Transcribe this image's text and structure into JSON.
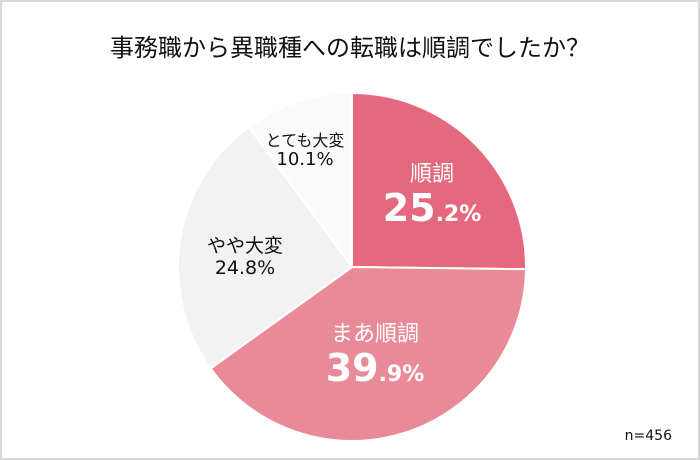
{
  "title": "事務職から異職種への転職は順調でしたか？",
  "sample_size": "n=456",
  "colors": {
    "junchou": "#e4697e",
    "maa_junchou": "#e98a98",
    "yaya_taihen": "#f2f2f2",
    "totemo_taihen": "#fafafa",
    "border": "#d9d9d9",
    "separator": "#ffffff"
  },
  "slices": [
    {
      "label": "順調",
      "int": "25",
      "dec": ".2%",
      "value": 25.2,
      "color": "#e4697e"
    },
    {
      "label": "まあ順調",
      "int": "39",
      "dec": ".9%",
      "value": 39.9,
      "color": "#e98a98"
    },
    {
      "label": "やや大変",
      "pct": "24.8%",
      "value": 24.8,
      "color": "#f2f2f2"
    },
    {
      "label": "とても大変",
      "pct": "10.1%",
      "value": 10.1,
      "color": "#fafafa"
    }
  ],
  "chart_data": {
    "type": "pie",
    "title": "事務職から異職種への転職は順調でしたか？",
    "categories": [
      "順調",
      "まあ順調",
      "やや大変",
      "とても大変"
    ],
    "values": [
      25.2,
      39.9,
      24.8,
      10.1
    ],
    "unit": "%",
    "start_angle": "12 o'clock",
    "direction": "clockwise",
    "annotations": [
      "n=456"
    ],
    "legend": "none (labels inside slices)"
  }
}
